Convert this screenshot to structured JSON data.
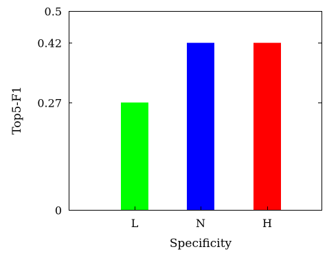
{
  "chart_data": {
    "type": "bar",
    "title": "",
    "xlabel": "Specificity",
    "ylabel": "Top5-F1",
    "categories": [
      "L",
      "N",
      "H"
    ],
    "values": [
      0.27,
      0.42,
      0.42
    ],
    "colors": [
      "#00ff00",
      "#0000ff",
      "#ff0000"
    ],
    "ylim": [
      0,
      0.5
    ],
    "yticks": [
      0,
      0.27,
      0.42,
      0.5
    ],
    "ytick_labels": [
      "0",
      "0.27",
      "0.42",
      "0.5"
    ],
    "grid": false,
    "legend": "none"
  }
}
